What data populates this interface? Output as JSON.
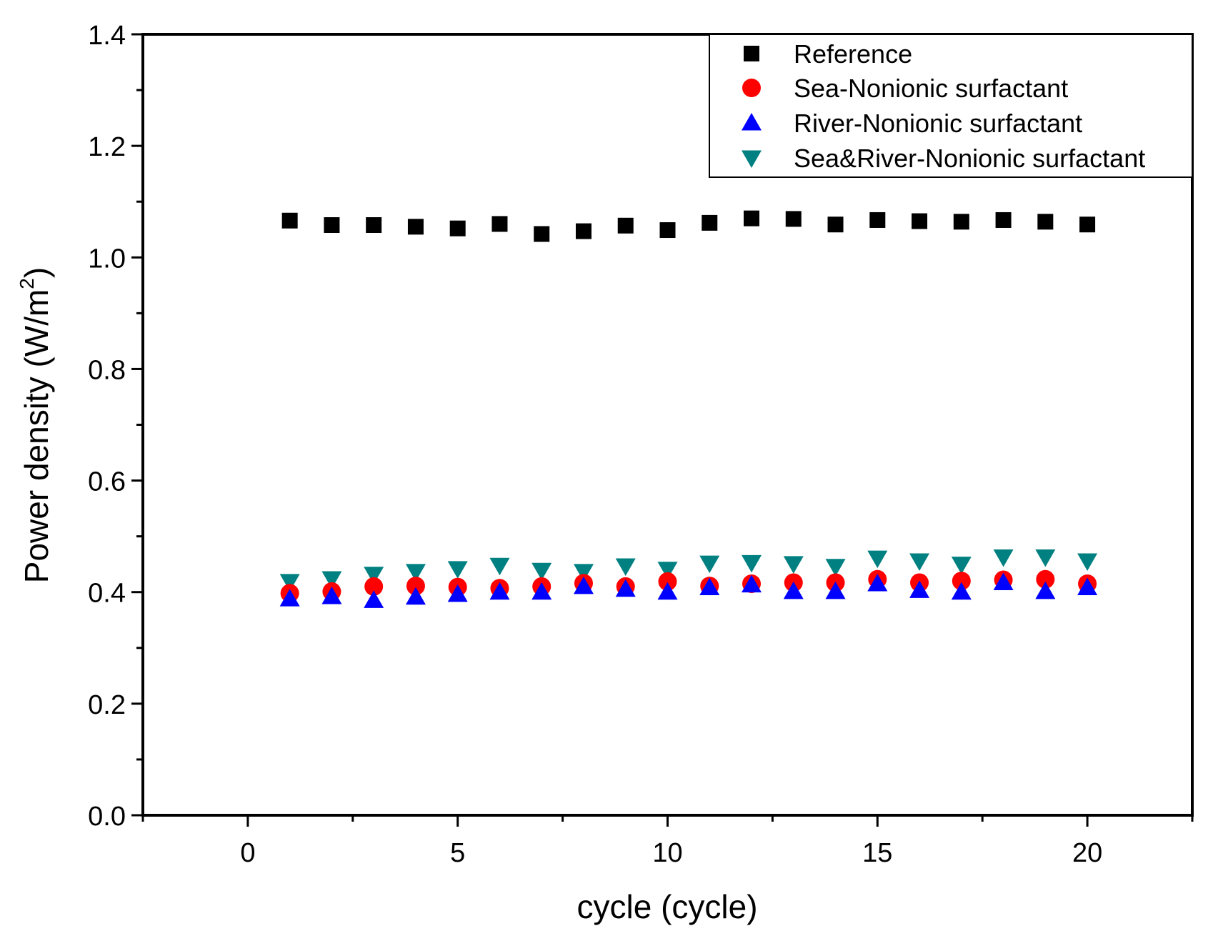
{
  "chart_data": {
    "type": "scatter",
    "title": "",
    "xlabel": "cycle (cycle)",
    "ylabel": "Power density (W/m",
    "ylabel_sup": "2",
    "ylabel_close": ")",
    "xlim": [
      -2.5,
      22.5
    ],
    "ylim": [
      0.0,
      1.4
    ],
    "x_major_ticks": [
      0,
      5,
      10,
      15,
      20
    ],
    "x_tick_labels": [
      "0",
      "5",
      "10",
      "15",
      "20"
    ],
    "y_major_ticks": [
      0.0,
      0.2,
      0.4,
      0.6,
      0.8,
      1.0,
      1.2,
      1.4
    ],
    "y_tick_labels": [
      "0.0",
      "0.2",
      "0.4",
      "0.6",
      "0.8",
      "1.0",
      "1.2",
      "1.4"
    ],
    "legend_position": "top-right",
    "x": [
      1,
      2,
      3,
      4,
      5,
      6,
      7,
      8,
      9,
      10,
      11,
      12,
      13,
      14,
      15,
      16,
      17,
      18,
      19,
      20
    ],
    "series": [
      {
        "name": "Reference",
        "marker": "square",
        "color": "#000000",
        "values": [
          1.066,
          1.058,
          1.058,
          1.055,
          1.052,
          1.06,
          1.042,
          1.047,
          1.057,
          1.049,
          1.062,
          1.07,
          1.069,
          1.059,
          1.067,
          1.065,
          1.064,
          1.067,
          1.064,
          1.059
        ]
      },
      {
        "name": "Sea-Nonionic surfactant",
        "marker": "circle",
        "color": "#ff0000",
        "values": [
          0.398,
          0.401,
          0.41,
          0.411,
          0.409,
          0.407,
          0.41,
          0.416,
          0.41,
          0.419,
          0.411,
          0.415,
          0.417,
          0.417,
          0.423,
          0.417,
          0.42,
          0.422,
          0.423,
          0.415
        ]
      },
      {
        "name": "River-Nonionic surfactant",
        "marker": "triangle-up",
        "color": "#0000ff",
        "values": [
          0.388,
          0.392,
          0.385,
          0.391,
          0.396,
          0.4,
          0.4,
          0.41,
          0.405,
          0.4,
          0.408,
          0.413,
          0.401,
          0.401,
          0.415,
          0.403,
          0.4,
          0.417,
          0.401,
          0.408
        ]
      },
      {
        "name": "Sea&River-Nonionic surfactant",
        "marker": "triangle-down",
        "color": "#008080",
        "values": [
          0.419,
          0.424,
          0.432,
          0.437,
          0.442,
          0.448,
          0.439,
          0.437,
          0.447,
          0.441,
          0.452,
          0.453,
          0.451,
          0.446,
          0.461,
          0.456,
          0.45,
          0.463,
          0.463,
          0.456
        ]
      }
    ]
  }
}
